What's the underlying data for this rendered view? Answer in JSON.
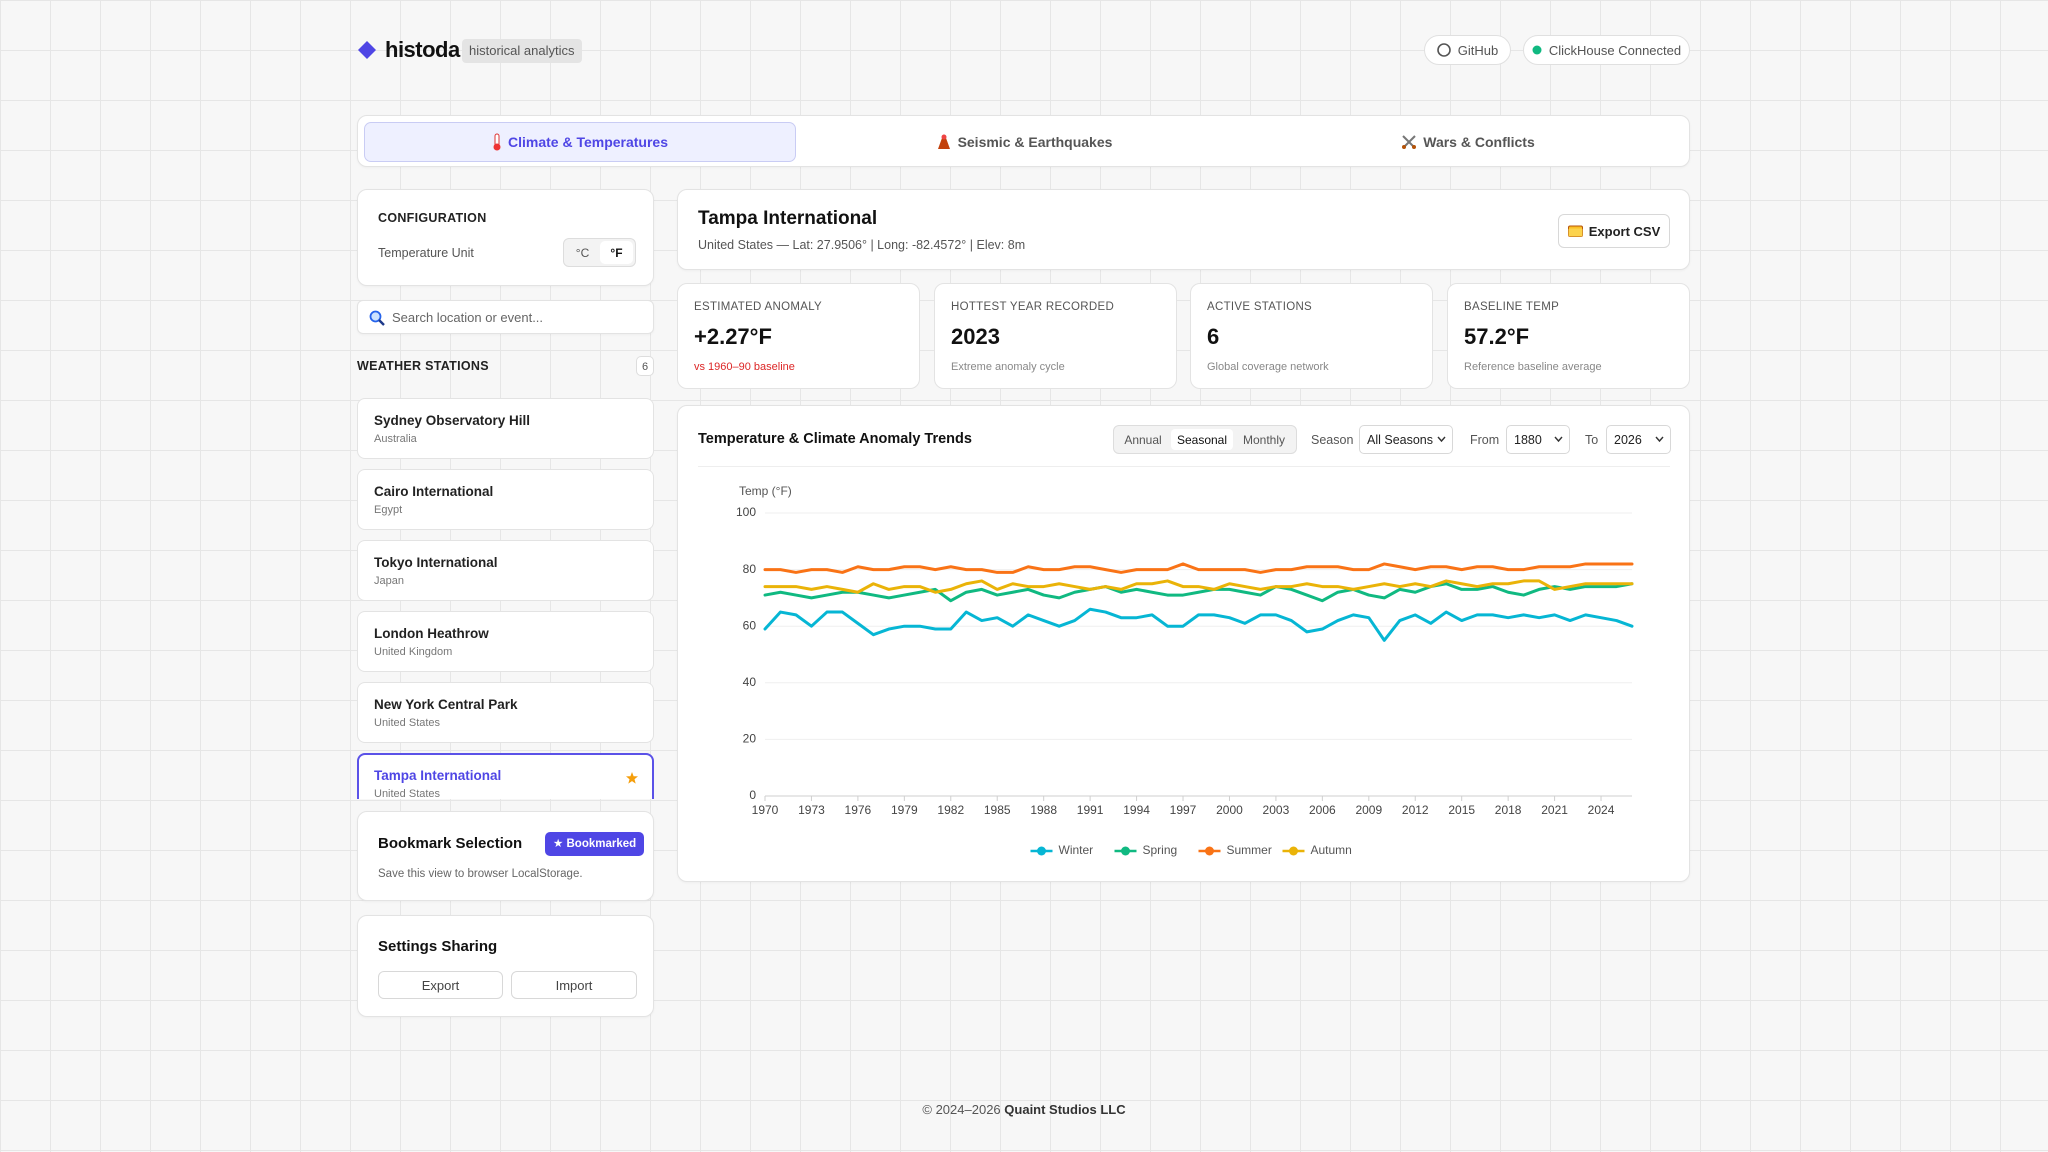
{
  "header": {
    "brand": "histoda",
    "tagline": "historical analytics",
    "github": "GitHub",
    "status": "ClickHouse Connected"
  },
  "tabs": [
    "Climate & Temperatures",
    "Seismic & Earthquakes",
    "Wars & Conflicts"
  ],
  "config": {
    "title": "CONFIGURATION",
    "unit_label": "Temperature Unit",
    "units": [
      "°C",
      "°F"
    ]
  },
  "search": {
    "placeholder": "Search location or event..."
  },
  "stations": {
    "title": "WEATHER STATIONS",
    "count": 6,
    "items": [
      {
        "name": "Sydney Observatory Hill",
        "country": "Australia"
      },
      {
        "name": "Cairo International",
        "country": "Egypt"
      },
      {
        "name": "Tokyo International",
        "country": "Japan"
      },
      {
        "name": "London Heathrow",
        "country": "United Kingdom"
      },
      {
        "name": "New York Central Park",
        "country": "United States"
      },
      {
        "name": "Tampa International",
        "country": "United States"
      }
    ]
  },
  "bookmark": {
    "title": "Bookmark Selection",
    "button": "★ Bookmarked",
    "text": "Save this view to browser LocalStorage."
  },
  "sharing": {
    "title": "Settings Sharing",
    "buttons": [
      "Export",
      "Import"
    ]
  },
  "location": {
    "name": "Tampa International",
    "details": "United States — Lat: 27.9506° | Long: -82.4572° | Elev: 8m",
    "export": "Export CSV"
  },
  "kpis": [
    {
      "label": "ESTIMATED ANOMALY",
      "value": "+2.27°F",
      "note": "vs 1960–90 baseline"
    },
    {
      "label": "HOTTEST YEAR RECORDED",
      "value": 2023,
      "note": "Extreme anomaly cycle"
    },
    {
      "label": "ACTIVE STATIONS",
      "value": 6,
      "note": "Global coverage network"
    },
    {
      "label": "BASELINE TEMP",
      "value": "57.2°F",
      "note": "Reference baseline average"
    }
  ],
  "chart_controls": {
    "title": "Temperature & Climate Anomaly Trends",
    "modes": [
      "Annual",
      "Seasonal",
      "Monthly"
    ],
    "season_label": "Season",
    "season": "All Seasons",
    "from_label": "From",
    "from": 1880,
    "to_label": "To",
    "to": 2026
  },
  "chart_data": {
    "type": "line",
    "y_label": "Temp (°F)",
    "x": [
      1970,
      1971,
      1972,
      1973,
      1974,
      1975,
      1976,
      1977,
      1978,
      1979,
      1980,
      1981,
      1982,
      1983,
      1984,
      1985,
      1986,
      1987,
      1988,
      1989,
      1990,
      1991,
      1992,
      1993,
      1994,
      1995,
      1996,
      1997,
      1998,
      1999,
      2000,
      2001,
      2002,
      2003,
      2004,
      2005,
      2006,
      2007,
      2008,
      2009,
      2010,
      2011,
      2012,
      2013,
      2014,
      2015,
      2016,
      2017,
      2018,
      2019,
      2020,
      2021,
      2022,
      2023,
      2024,
      2025,
      2026
    ],
    "xlim": [
      1970,
      2026
    ],
    "xticks": [
      1970,
      1973,
      1976,
      1979,
      1982,
      1985,
      1988,
      1991,
      1994,
      1997,
      2000,
      2003,
      2006,
      2009,
      2012,
      2015,
      2018,
      2021,
      2024
    ],
    "ylim": [
      0,
      100
    ],
    "yticks": [
      0,
      20,
      40,
      60,
      80,
      100
    ],
    "grid": true,
    "legend": "bottom",
    "series": [
      {
        "name": "Winter",
        "color": "#06b6d4",
        "values": [
          59,
          65,
          64,
          60,
          65,
          65,
          61,
          57,
          59,
          60,
          60,
          59,
          59,
          65,
          62,
          63,
          60,
          64,
          62,
          60,
          62,
          66,
          65,
          63,
          63,
          64,
          60,
          60,
          64,
          64,
          63,
          61,
          64,
          64,
          62,
          58,
          59,
          62,
          64,
          63,
          55,
          62,
          64,
          61,
          65,
          62,
          64,
          64,
          63,
          64,
          63,
          64,
          62,
          64,
          63,
          62,
          60
        ]
      },
      {
        "name": "Spring",
        "color": "#10b981",
        "values": [
          71,
          72,
          71,
          70,
          71,
          72,
          72,
          71,
          70,
          71,
          72,
          73,
          69,
          72,
          73,
          71,
          72,
          73,
          71,
          70,
          72,
          73,
          74,
          72,
          73,
          72,
          71,
          71,
          72,
          73,
          73,
          72,
          71,
          74,
          73,
          71,
          69,
          72,
          73,
          71,
          70,
          73,
          72,
          74,
          75,
          73,
          73,
          74,
          72,
          71,
          73,
          74,
          73,
          74,
          74,
          74,
          75
        ]
      },
      {
        "name": "Summer",
        "color": "#f97316",
        "values": [
          80,
          80,
          79,
          80,
          80,
          79,
          81,
          80,
          80,
          81,
          81,
          80,
          81,
          80,
          80,
          79,
          79,
          81,
          80,
          80,
          81,
          81,
          80,
          79,
          80,
          80,
          80,
          82,
          80,
          80,
          80,
          80,
          79,
          80,
          80,
          81,
          81,
          81,
          80,
          80,
          82,
          81,
          80,
          81,
          81,
          80,
          81,
          81,
          80,
          80,
          81,
          81,
          81,
          82,
          82,
          82,
          82
        ]
      },
      {
        "name": "Autumn",
        "color": "#eab308",
        "values": [
          74,
          74,
          74,
          73,
          74,
          73,
          72,
          75,
          73,
          74,
          74,
          72,
          73,
          75,
          76,
          73,
          75,
          74,
          74,
          75,
          74,
          73,
          74,
          73,
          75,
          75,
          76,
          74,
          74,
          73,
          75,
          74,
          73,
          74,
          74,
          75,
          74,
          74,
          73,
          74,
          75,
          74,
          75,
          74,
          76,
          75,
          74,
          75,
          75,
          76,
          76,
          73,
          74,
          75,
          75,
          75,
          75
        ]
      }
    ]
  },
  "footer": {
    "copyright": "© 2024–2026",
    "company": "Quaint Studios LLC"
  }
}
